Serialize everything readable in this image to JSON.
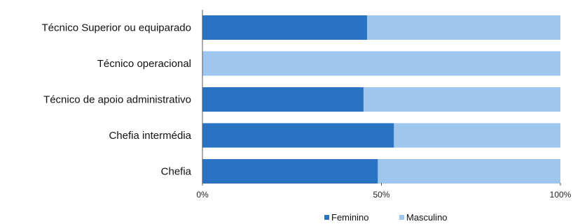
{
  "chart_data": {
    "type": "bar",
    "orientation": "horizontal",
    "stacked": true,
    "percent_stacked": true,
    "categories": [
      "Técnico Superior ou equiparado",
      "Técnico operacional",
      "Técnico de apoio administrativo",
      "Chefia intermédia",
      "Chefia"
    ],
    "series": [
      {
        "name": "Feminino",
        "values": [
          46,
          0,
          45,
          53.5,
          49
        ],
        "color": "#2a73c2"
      },
      {
        "name": "Masculino",
        "values": [
          54,
          100,
          55,
          46.5,
          51
        ],
        "color": "#9ec6ee"
      }
    ],
    "xlim": [
      0,
      100
    ],
    "ticks": [
      "0%",
      "50%",
      "100%"
    ],
    "title": "",
    "xlabel": "",
    "ylabel": "",
    "grid": false,
    "legend_position": "bottom"
  }
}
